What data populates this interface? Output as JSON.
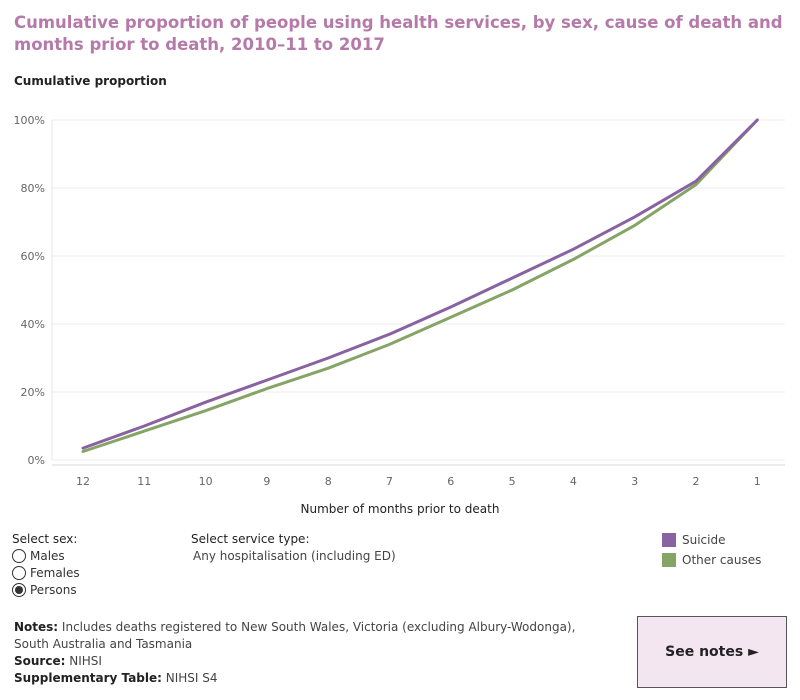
{
  "title": "Cumulative proportion of people using health services, by sex, cause of death and months prior to death, 2010–11 to 2017",
  "controls": {
    "sex_label": "Select sex:",
    "sex_options": [
      "Males",
      "Females",
      "Persons"
    ],
    "sex_selected": "Persons",
    "service_label": "Select service type:",
    "service_value": "Any hospitalisation (including ED)"
  },
  "notes": {
    "notes_label": "Notes:",
    "notes_text": " Includes deaths registered to New South Wales, Victoria (excluding Albury-Wodonga), South Australia and Tasmania",
    "source_label": "Source:",
    "source_text": " NIHSI",
    "supp_label": "Supplementary Table:",
    "supp_text": " NIHSI S4"
  },
  "see_notes_label": "See notes ►",
  "chart_data": {
    "type": "line",
    "x": [
      12,
      11,
      10,
      9,
      8,
      7,
      6,
      5,
      4,
      3,
      2,
      1
    ],
    "xlabel": "Number of months prior to death",
    "ylabel": "Cumulative proportion",
    "ylim": [
      0,
      100
    ],
    "yticks": [
      "0%",
      "20%",
      "40%",
      "60%",
      "80%",
      "100%"
    ],
    "ytick_values": [
      0,
      20,
      40,
      60,
      80,
      100
    ],
    "grid": true,
    "legend_position": "bottom-right",
    "series": [
      {
        "name": "Suicide",
        "color": "#8962a2",
        "values": [
          3.5,
          10,
          17,
          23.5,
          30,
          37,
          45,
          53.5,
          62,
          71.5,
          82,
          100
        ]
      },
      {
        "name": "Other causes",
        "color": "#85a466",
        "values": [
          2.5,
          8.5,
          14.5,
          21,
          27,
          34,
          42,
          50,
          59,
          69,
          81,
          100
        ]
      }
    ]
  }
}
